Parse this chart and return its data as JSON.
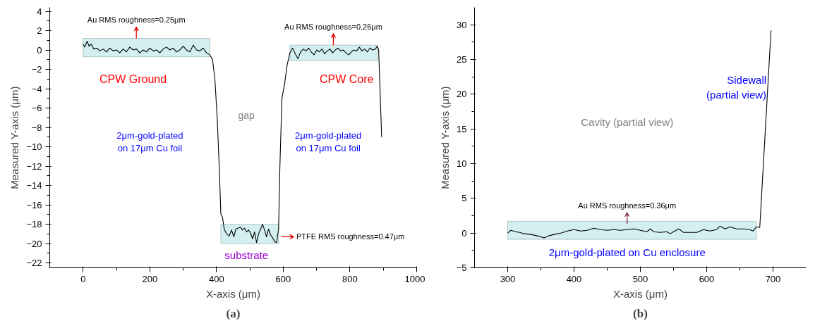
{
  "chart_data": [
    {
      "type": "line",
      "xlabel": "X-axis (μm)",
      "ylabel": "Measured Y-axis (μm)",
      "xlim": [
        -100,
        1000
      ],
      "ylim": [
        -22.5,
        4.4
      ],
      "xticks": [
        0,
        200,
        400,
        600,
        800,
        1000
      ],
      "yticks": [
        -22,
        -20,
        -18,
        -16,
        -14,
        -12,
        -10,
        -8,
        -6,
        -4,
        -2,
        0,
        2,
        4
      ],
      "series": [
        {
          "color": "#000000",
          "x": [
            0,
            5,
            12,
            18,
            25,
            32,
            42,
            50,
            60,
            70,
            80,
            90,
            100,
            110,
            120,
            130,
            140,
            150,
            160,
            170,
            180,
            190,
            200,
            210,
            220,
            230,
            240,
            250,
            260,
            270,
            280,
            290,
            300,
            310,
            320,
            330,
            340,
            350,
            360,
            370,
            380,
            388,
            395,
            402,
            408,
            413,
            418,
            423,
            430,
            438,
            445,
            452,
            458,
            465,
            472,
            478,
            484,
            490,
            496,
            502,
            508,
            514,
            520,
            526,
            532,
            538,
            544,
            550,
            556,
            562,
            568,
            574,
            580,
            586,
            590,
            596,
            604,
            612,
            620,
            628,
            636,
            644,
            652,
            660,
            668,
            676,
            684,
            692,
            700,
            708,
            716,
            724,
            732,
            740,
            748,
            756,
            764,
            772,
            780,
            788,
            796,
            804,
            812,
            820,
            828,
            836,
            844,
            852,
            860,
            868,
            876,
            882,
            886,
            890,
            895
          ],
          "values": [
            0.6,
            0.3,
            0.9,
            0.4,
            0.6,
            0.1,
            0.2,
            -0.1,
            0.1,
            -0.2,
            0.2,
            -0.1,
            0,
            -0.3,
            0.1,
            -0.2,
            0.3,
            0,
            0.1,
            -0.3,
            0,
            -0.2,
            0.2,
            -0.1,
            0,
            -0.3,
            0.1,
            0.3,
            0,
            0.2,
            -0.2,
            0,
            0.4,
            0,
            -0.2,
            0.5,
            0,
            -0.1,
            0.2,
            -0.3,
            -0.5,
            -1,
            -3,
            -7,
            -12,
            -17,
            -17.3,
            -18.5,
            -19,
            -19.2,
            -18.6,
            -19.3,
            -18.5,
            -18.4,
            -18.3,
            -18.6,
            -18.4,
            -18.8,
            -18.6,
            -18.9,
            -19.5,
            -18.8,
            -19.9,
            -19,
            -18.5,
            -18,
            -18.6,
            -19.3,
            -18.5,
            -19.1,
            -19.4,
            -19.8,
            -19.9,
            -18.5,
            -12,
            -5,
            -3.5,
            -1.5,
            -0.3,
            0.2,
            -0.4,
            -0.9,
            -0.2,
            0.1,
            -0.1,
            0.2,
            -0.2,
            -0.5,
            0,
            -0.2,
            0.1,
            -0.4,
            -0.1,
            0.1,
            -0.3,
            0,
            0.2,
            -0.1,
            0,
            -0.3,
            -0.5,
            -0.2,
            0,
            -0.1,
            0.3,
            -0.1,
            0.1,
            -0.2,
            0.2,
            0,
            0.1,
            0.4,
            0,
            -4,
            -9
          ],
          "lower": [
            -0.7,
            -0.7,
            -0.7,
            -0.7,
            -0.7,
            -0.7,
            -0.7,
            -0.7,
            -0.7,
            -0.7,
            -0.7,
            -0.7,
            -0.7,
            -0.7,
            -0.7,
            -0.7,
            -0.7,
            -0.7,
            -0.7,
            -0.7,
            -0.7,
            -0.7,
            -0.7,
            -0.7,
            -0.7,
            -0.7,
            -0.7,
            -0.7,
            -0.7,
            -0.7,
            -0.7,
            -0.7,
            -0.7,
            -0.7,
            -0.7,
            -0.7,
            -0.7,
            -0.7,
            -0.7,
            -0.7,
            -0.7,
            null,
            null,
            null,
            null,
            -20,
            -20,
            -20,
            -20,
            -20,
            -20,
            -20,
            -20,
            -20,
            -20,
            -20,
            -20,
            -20,
            -20,
            -20,
            -20,
            -20,
            -20,
            -20,
            -20,
            -20,
            -20,
            -20,
            -20,
            -20,
            -20,
            -20,
            -20,
            -20,
            null,
            null,
            null,
            null,
            -1.1,
            -1.1,
            -1.1,
            -1.1,
            -1.1,
            -1.1,
            -1.1,
            -1.1,
            -1.1,
            -1.1,
            -1.1,
            -1.1,
            -1.1,
            -1.1,
            -1.1,
            -1.1,
            -1.1,
            -1.1,
            -1.1,
            -1.1,
            -1.1,
            -1.1,
            -1.1,
            -1.1,
            -1.1,
            -1.1,
            -1.1,
            -1.1,
            -1.1,
            -1.1,
            -1.1,
            -1.1,
            -1.1,
            -1.1,
            null,
            null,
            null
          ],
          "upper": [
            1.2,
            1.2,
            1.2,
            1.2,
            1.2,
            1.2,
            1.2,
            1.2,
            1.2,
            1.2,
            1.2,
            1.2,
            1.2,
            1.2,
            1.2,
            1.2,
            1.2,
            1.2,
            1.2,
            1.2,
            1.2,
            1.2,
            1.2,
            1.2,
            1.2,
            1.2,
            1.2,
            1.2,
            1.2,
            1.2,
            1.2,
            1.2,
            1.2,
            1.2,
            1.2,
            1.2,
            1.2,
            1.2,
            1.2,
            1.2,
            1.2,
            null,
            null,
            null,
            null,
            -18,
            -18,
            -18,
            -18,
            -18,
            -18,
            -18,
            -18,
            -18,
            -18,
            -18,
            -18,
            -18,
            -18,
            -18,
            -18,
            -18,
            -18,
            -18,
            -18,
            -18,
            -18,
            -18,
            -18,
            -18,
            -18,
            -18,
            -18,
            -18,
            null,
            null,
            null,
            null,
            0.5,
            0.5,
            0.5,
            0.5,
            0.5,
            0.5,
            0.5,
            0.5,
            0.5,
            0.5,
            0.5,
            0.5,
            0.5,
            0.5,
            0.5,
            0.5,
            0.5,
            0.5,
            0.5,
            0.5,
            0.5,
            0.5,
            0.5,
            0.5,
            0.5,
            0.5,
            0.5,
            0.5,
            0.5,
            0.5,
            0.5,
            0.5,
            0.5,
            0.5,
            null,
            null,
            null
          ]
        }
      ],
      "annotations": [
        "Au RMS roughness=0.25μm",
        "Au RMS roughness=0.26μm",
        "PTFE RMS roughness=0.47μm",
        "CPW Ground",
        "CPW Core",
        "gap",
        "2μm-gold-plated\non 17μm Cu foil",
        "2μm-gold-plated\non 17μm Cu foil",
        "substrate",
        "(a)"
      ]
    },
    {
      "type": "line",
      "xlabel": "X-axis (μm)",
      "ylabel": "Measured Y-axis (μm)",
      "xlim": [
        250,
        750
      ],
      "ylim": [
        -5,
        32.5
      ],
      "xticks": [
        300,
        400,
        500,
        600,
        700
      ],
      "yticks": [
        -5,
        0,
        5,
        10,
        15,
        20,
        25,
        30
      ],
      "series": [
        {
          "color": "#000000",
          "x": [
            300,
            305,
            312,
            318,
            325,
            335,
            345,
            355,
            362,
            370,
            380,
            390,
            400,
            410,
            420,
            430,
            440,
            450,
            460,
            470,
            480,
            490,
            500,
            510,
            515,
            520,
            530,
            540,
            545,
            550,
            558,
            565,
            575,
            585,
            595,
            605,
            615,
            620,
            628,
            635,
            645,
            655,
            665,
            670,
            675,
            680,
            697
          ],
          "values": [
            0,
            0.4,
            0.2,
            0.1,
            -0.1,
            -0.2,
            -0.4,
            -0.7,
            -0.4,
            -0.2,
            0,
            0.3,
            0.5,
            0.3,
            0.4,
            0.7,
            0.5,
            0.4,
            0.5,
            0.4,
            0.5,
            0.6,
            0.4,
            0.2,
            0.6,
            0.2,
            0.1,
            0.2,
            -0.1,
            0.2,
            0.6,
            0.1,
            0.1,
            0.1,
            0.5,
            0.3,
            0.5,
            1.0,
            0.6,
            0.9,
            0.6,
            0.6,
            0.5,
            0.3,
            0.9,
            0.8,
            29.2
          ],
          "lower": [
            -0.9,
            -0.9,
            -0.9,
            -0.9,
            -0.9,
            -0.9,
            -0.9,
            -0.9,
            -0.9,
            -0.9,
            -0.9,
            -0.9,
            -0.9,
            -0.9,
            -0.9,
            -0.9,
            -0.9,
            -0.9,
            -0.9,
            -0.9,
            -0.9,
            -0.9,
            -0.9,
            -0.9,
            -0.9,
            -0.9,
            -0.9,
            -0.9,
            -0.9,
            -0.9,
            -0.9,
            -0.9,
            -0.9,
            -0.9,
            -0.9,
            -0.9,
            -0.9,
            -0.9,
            -0.9,
            -0.9,
            -0.9,
            -0.9,
            -0.9,
            -0.9,
            -0.9,
            null,
            null
          ],
          "upper": [
            1.7,
            1.7,
            1.7,
            1.7,
            1.7,
            1.7,
            1.7,
            1.7,
            1.7,
            1.7,
            1.7,
            1.7,
            1.7,
            1.7,
            1.7,
            1.7,
            1.7,
            1.7,
            1.7,
            1.7,
            1.7,
            1.7,
            1.7,
            1.7,
            1.7,
            1.7,
            1.7,
            1.7,
            1.7,
            1.7,
            1.7,
            1.7,
            1.7,
            1.7,
            1.7,
            1.7,
            1.7,
            1.7,
            1.7,
            1.7,
            1.7,
            1.7,
            1.7,
            1.7,
            1.7,
            null,
            null
          ]
        }
      ],
      "annotations": [
        "Au RMS roughness=0.36μm",
        "Cavity (partial view)",
        "Sidewall\n(partial view)",
        "2μm-gold-plated on Cu enclosure",
        "(b)"
      ]
    }
  ]
}
